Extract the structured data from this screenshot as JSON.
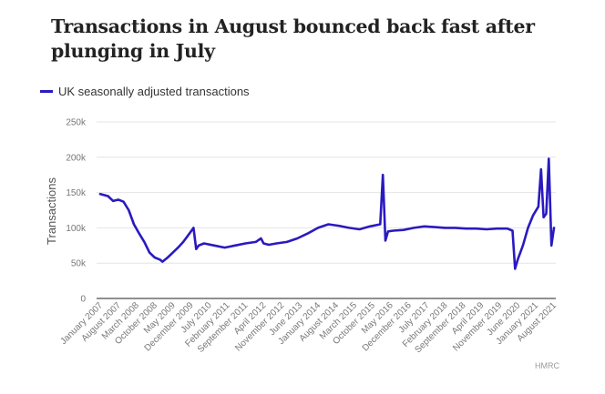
{
  "chart_data": {
    "type": "line",
    "title": "Transactions in August bounced back fast after plunging in July",
    "ylabel": "Transactions",
    "ylim": [
      0,
      250000
    ],
    "y_ticks": [
      0,
      50000,
      100000,
      150000,
      200000,
      250000
    ],
    "y_tick_labels": [
      "0",
      "50k",
      "100k",
      "150k",
      "200k",
      "250k"
    ],
    "x_tick_labels": [
      "January 2007",
      "August 2007",
      "March 2008",
      "October 2008",
      "May 2009",
      "December 2009",
      "July 2010",
      "February 2011",
      "September 2011",
      "April 2012",
      "November 2012",
      "June 2013",
      "January 2014",
      "August 2014",
      "March 2015",
      "October 2015",
      "May 2016",
      "December 2016",
      "July 2017",
      "February 2018",
      "September 2018",
      "April 2019",
      "November 2019",
      "June 2020",
      "January 2021",
      "August 2021"
    ],
    "legend_position": "top-left",
    "grid": true,
    "series": [
      {
        "name": "UK seasonally adjusted transactions",
        "color": "#2a1abf",
        "x": [
          "2007-01",
          "2007-04",
          "2007-06",
          "2007-08",
          "2007-10",
          "2007-12",
          "2008-02",
          "2008-04",
          "2008-06",
          "2008-08",
          "2008-10",
          "2008-12",
          "2009-01",
          "2009-03",
          "2009-05",
          "2009-07",
          "2009-09",
          "2009-11",
          "2010-01",
          "2010-02",
          "2010-03",
          "2010-05",
          "2010-09",
          "2011-01",
          "2011-05",
          "2011-09",
          "2012-01",
          "2012-03",
          "2012-04",
          "2012-06",
          "2012-09",
          "2013-01",
          "2013-05",
          "2013-09",
          "2014-01",
          "2014-05",
          "2014-09",
          "2015-01",
          "2015-05",
          "2015-09",
          "2016-01",
          "2016-02",
          "2016-03",
          "2016-04",
          "2016-06",
          "2016-10",
          "2017-02",
          "2017-06",
          "2017-10",
          "2018-02",
          "2018-06",
          "2018-10",
          "2019-02",
          "2019-06",
          "2019-10",
          "2020-02",
          "2020-04",
          "2020-05",
          "2020-06",
          "2020-08",
          "2020-10",
          "2020-12",
          "2021-02",
          "2021-03",
          "2021-04",
          "2021-05",
          "2021-06",
          "2021-07",
          "2021-08"
        ],
        "values": [
          148000,
          145000,
          138000,
          140000,
          137000,
          125000,
          105000,
          92000,
          80000,
          65000,
          58000,
          55000,
          52000,
          58000,
          65000,
          72000,
          80000,
          90000,
          100000,
          70000,
          75000,
          78000,
          75000,
          72000,
          75000,
          78000,
          80000,
          85000,
          78000,
          76000,
          78000,
          80000,
          85000,
          92000,
          100000,
          105000,
          103000,
          100000,
          98000,
          102000,
          105000,
          175000,
          82000,
          95000,
          96000,
          97000,
          100000,
          102000,
          101000,
          100000,
          100000,
          99000,
          99000,
          98000,
          99000,
          99000,
          96000,
          42000,
          55000,
          75000,
          100000,
          118000,
          130000,
          183000,
          115000,
          120000,
          198000,
          75000,
          100000
        ]
      }
    ],
    "source": "HMRC"
  }
}
